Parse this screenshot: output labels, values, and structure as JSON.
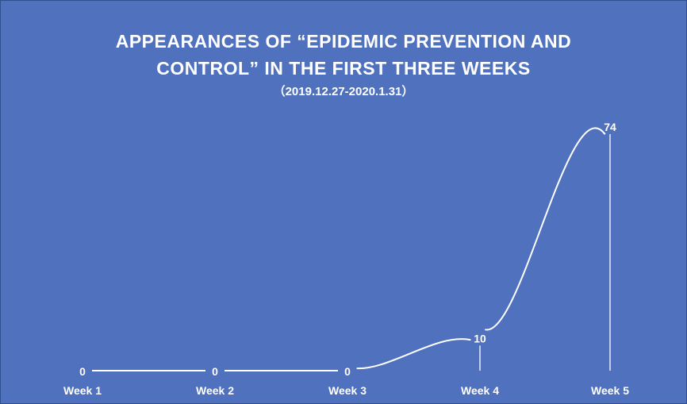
{
  "chart_data": {
    "type": "line",
    "title_line1": "APPEARANCES OF “EPIDEMIC PREVENTION AND",
    "title_line2": "CONTROL” IN THE FIRST THREE WEEKS",
    "subtitle": "（2019.12.27-2020.1.31）",
    "categories": [
      "Week 1",
      "Week 2",
      "Week 3",
      "Week 4",
      "Week 5"
    ],
    "series": [
      {
        "values": [
          0,
          0,
          0,
          10,
          74
        ]
      }
    ],
    "ylim": [
      0,
      74
    ],
    "grid": false,
    "legend": "none",
    "data_labels": true,
    "drop_lines": true,
    "colors": {
      "background": "#4f71be",
      "line": "#ffffff",
      "text": "#ffffff"
    }
  }
}
